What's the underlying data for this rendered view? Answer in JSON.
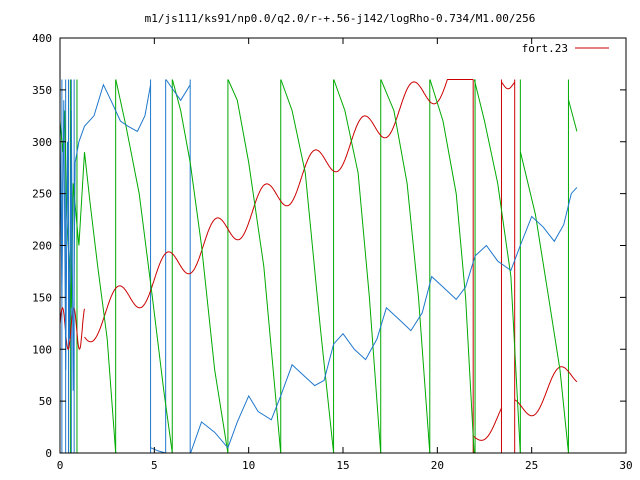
{
  "chart_data": {
    "type": "line",
    "title": "m1/js111/ks91/np0.0/q2.0/r-+.56-j142/logRho-0.734/M1.00/256",
    "xlim": [
      0,
      30
    ],
    "ylim": [
      0,
      400
    ],
    "x_ticks": [
      0,
      5,
      10,
      15,
      20,
      25,
      30
    ],
    "y_ticks": [
      0,
      50,
      100,
      150,
      200,
      250,
      300,
      350,
      400
    ],
    "x_tick_labels": [
      "0",
      "5",
      "10",
      "15",
      "20",
      "25",
      "30"
    ],
    "y_tick_labels": [
      "0",
      "50",
      "100",
      "150",
      "200",
      "250",
      "300",
      "350",
      "400"
    ],
    "grid": false,
    "legend": {
      "position": "top-right",
      "entries": [
        {
          "label": "fort.23",
          "color": "#cc0000"
        }
      ]
    },
    "series": [
      {
        "color": "#cc0000",
        "kind": "wave",
        "segments": [
          {
            "x0": 0.0,
            "x1": 1.3,
            "base": 120,
            "slope": 0,
            "amp": 20,
            "period": 0.6,
            "phase": 0.2
          },
          {
            "x0": 1.3,
            "x1": 21.9,
            "base": 104,
            "slope": 12.6,
            "amp": 18,
            "period": 2.6,
            "phase": 0.5
          },
          {
            "x0": 21.9,
            "x1": 23.4,
            "base": -290,
            "slope": 14,
            "amp": 12,
            "period": 2.6,
            "phase": 0.5
          },
          {
            "x0": 23.4,
            "x1": 24.1,
            "base": 355,
            "slope": 0,
            "amp": 4,
            "period": 1.0,
            "phase": 0.0
          },
          {
            "x0": 24.1,
            "x1": 27.4,
            "base": -250,
            "slope": 12,
            "amp": 15,
            "period": 2.6,
            "phase": 0.5
          }
        ]
      },
      {
        "color": "#00aa00",
        "kind": "sawtooth",
        "knots": [
          [
            0.0,
            320
          ],
          [
            0.15,
            290
          ],
          [
            0.25,
            330
          ],
          [
            0.35,
            230
          ],
          [
            0.5,
            180
          ],
          [
            0.6,
            140
          ],
          [
            0.7,
            260
          ],
          [
            0.85,
            230
          ],
          [
            1.0,
            200
          ],
          [
            1.3,
            290
          ],
          [
            1.6,
            240
          ],
          [
            2.0,
            180
          ],
          [
            2.5,
            110
          ],
          [
            2.95,
            0
          ],
          [
            2.96,
            360
          ],
          [
            3.5,
            315
          ],
          [
            4.2,
            250
          ],
          [
            4.9,
            150
          ],
          [
            5.5,
            60
          ],
          [
            5.95,
            0
          ],
          [
            5.96,
            360
          ],
          [
            6.4,
            330
          ],
          [
            6.9,
            280
          ],
          [
            7.5,
            200
          ],
          [
            8.2,
            80
          ],
          [
            8.9,
            0
          ],
          [
            8.91,
            360
          ],
          [
            9.4,
            340
          ],
          [
            10.0,
            280
          ],
          [
            10.8,
            180
          ],
          [
            11.7,
            0
          ],
          [
            11.71,
            360
          ],
          [
            12.3,
            330
          ],
          [
            13.0,
            270
          ],
          [
            13.8,
            120
          ],
          [
            14.5,
            0
          ],
          [
            14.51,
            360
          ],
          [
            15.1,
            330
          ],
          [
            15.8,
            270
          ],
          [
            16.4,
            150
          ],
          [
            17.0,
            0
          ],
          [
            17.01,
            360
          ],
          [
            17.7,
            330
          ],
          [
            18.4,
            260
          ],
          [
            19.0,
            150
          ],
          [
            19.6,
            0
          ],
          [
            19.61,
            360
          ],
          [
            20.3,
            320
          ],
          [
            21.0,
            250
          ],
          [
            21.5,
            150
          ],
          [
            21.95,
            0
          ],
          [
            21.96,
            360
          ],
          [
            22.5,
            320
          ],
          [
            23.2,
            260
          ],
          [
            23.9,
            170
          ],
          [
            24.4,
            0
          ],
          [
            24.41,
            290
          ],
          [
            25.2,
            230
          ],
          [
            25.9,
            150
          ],
          [
            26.5,
            80
          ],
          [
            26.95,
            0
          ],
          [
            26.96,
            340
          ],
          [
            27.4,
            310
          ]
        ]
      },
      {
        "color": "#1f77cc",
        "kind": "sawtooth",
        "knots": [
          [
            0.0,
            320
          ],
          [
            0.1,
            150
          ],
          [
            0.2,
            340
          ],
          [
            0.3,
            80
          ],
          [
            0.4,
            300
          ],
          [
            0.5,
            110
          ],
          [
            0.6,
            330
          ],
          [
            0.7,
            60
          ],
          [
            0.8,
            280
          ],
          [
            1.0,
            300
          ],
          [
            1.3,
            315
          ],
          [
            1.8,
            325
          ],
          [
            2.3,
            355
          ],
          [
            2.7,
            340
          ],
          [
            3.2,
            320
          ],
          [
            3.6,
            315
          ],
          [
            4.1,
            310
          ],
          [
            4.5,
            325
          ],
          [
            4.8,
            355
          ],
          [
            4.82,
            5
          ],
          [
            5.2,
            2
          ],
          [
            5.6,
            0
          ],
          [
            5.62,
            360
          ],
          [
            6.0,
            350
          ],
          [
            6.4,
            340
          ],
          [
            6.9,
            355
          ],
          [
            6.92,
            0
          ],
          [
            7.5,
            30
          ],
          [
            8.2,
            20
          ],
          [
            8.9,
            5
          ],
          [
            9.4,
            30
          ],
          [
            10.0,
            55
          ],
          [
            10.5,
            40
          ],
          [
            11.2,
            32
          ],
          [
            11.7,
            55
          ],
          [
            12.3,
            85
          ],
          [
            12.9,
            75
          ],
          [
            13.5,
            65
          ],
          [
            14.0,
            70
          ],
          [
            14.5,
            105
          ],
          [
            15.0,
            115
          ],
          [
            15.6,
            100
          ],
          [
            16.2,
            90
          ],
          [
            16.8,
            110
          ],
          [
            17.3,
            140
          ],
          [
            17.9,
            130
          ],
          [
            18.6,
            118
          ],
          [
            19.2,
            135
          ],
          [
            19.7,
            170
          ],
          [
            20.3,
            160
          ],
          [
            21.0,
            148
          ],
          [
            21.5,
            160
          ],
          [
            22.0,
            190
          ],
          [
            22.6,
            200
          ],
          [
            23.2,
            185
          ],
          [
            23.9,
            176
          ],
          [
            24.4,
            200
          ],
          [
            25.0,
            228
          ],
          [
            25.6,
            218
          ],
          [
            26.2,
            204
          ],
          [
            26.7,
            220
          ],
          [
            27.1,
            250
          ],
          [
            27.4,
            256
          ]
        ]
      }
    ],
    "vertical_segments": [
      {
        "color": "#00aa00",
        "x": [
          0.55,
          0.9,
          2.95,
          5.95,
          8.9,
          11.7,
          14.5,
          17.0,
          19.6,
          22.0,
          24.4,
          26.95
        ]
      },
      {
        "color": "#1f77cc",
        "x": [
          0.1,
          0.3,
          0.45,
          0.6,
          0.75,
          4.8,
          5.6,
          6.9
        ]
      },
      {
        "color": "#cc0000",
        "x": [
          21.9,
          23.4,
          24.1
        ]
      }
    ]
  }
}
